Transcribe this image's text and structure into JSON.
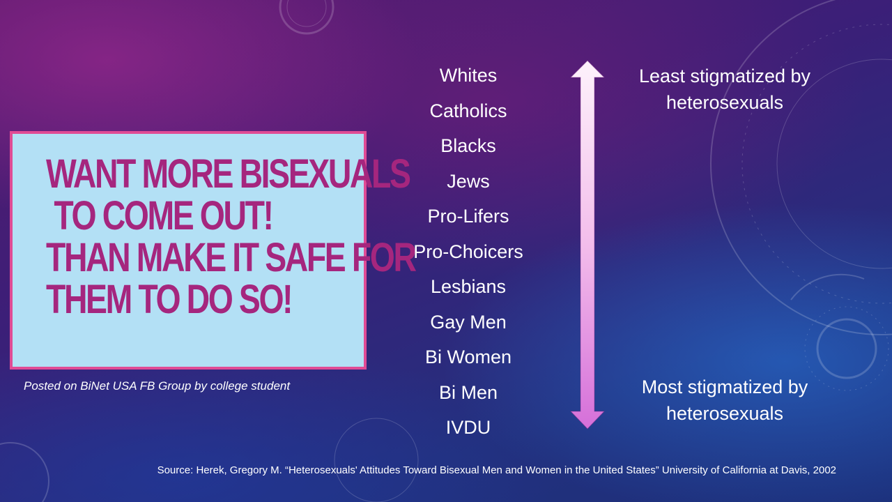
{
  "poster": {
    "lines": [
      "WANT MORE BISEXUALS",
      "TO COME OUT!",
      "THAN MAKE IT SAFE FOR",
      "THEM TO DO SO!"
    ],
    "background_color": "#b3e0f5",
    "border_color": "#e04b95",
    "text_color": "#a5267e"
  },
  "caption": "Posted on BiNet USA FB Group by college student",
  "ranking": [
    "Whites",
    "Catholics",
    "Blacks",
    "Jews",
    "Pro-Lifers",
    "Pro-Choicers",
    "Lesbians",
    "Gay Men",
    "Bi Women",
    "Bi Men",
    "IVDU"
  ],
  "scale": {
    "top_label": "Least stigmatized by heterosexuals",
    "bottom_label": "Most stigmatized by heterosexuals"
  },
  "source": "Source: Herek, Gregory M. “Heterosexuals' Attitudes Toward Bisexual Men and Women in the United States” University of California at Davis, 2002"
}
